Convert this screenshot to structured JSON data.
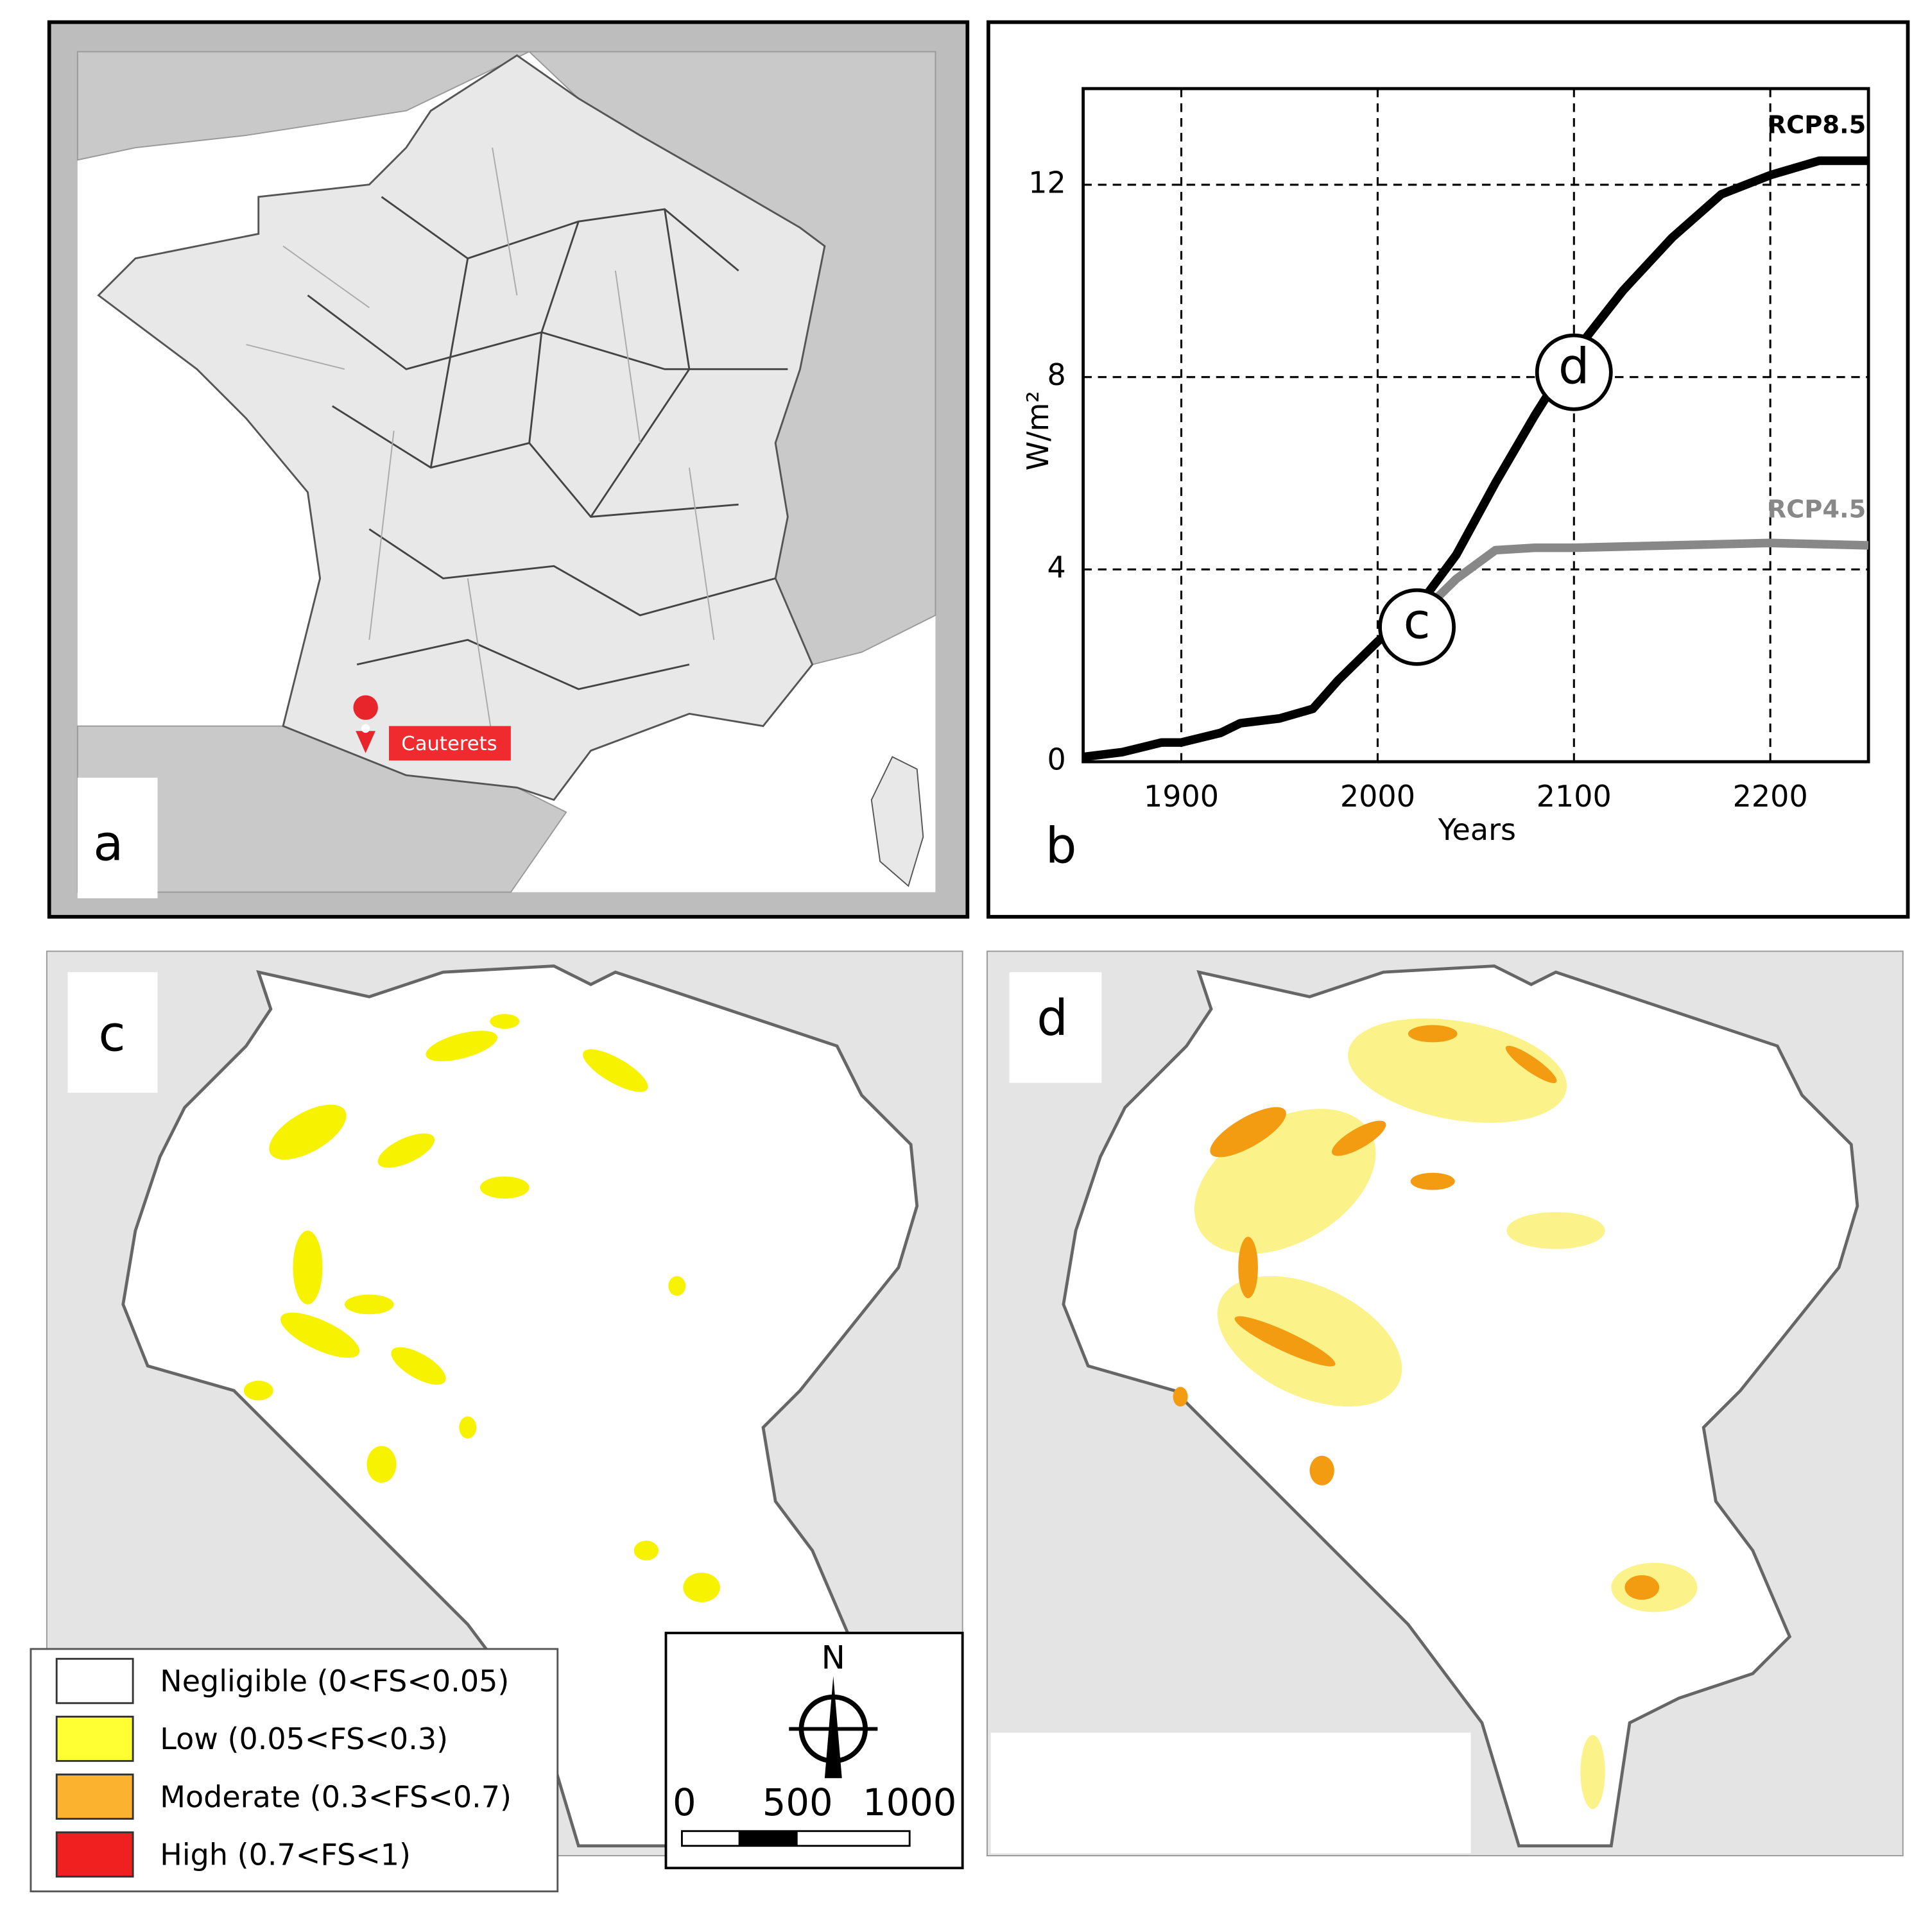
{
  "panels": {
    "a": {
      "label": "a",
      "location": "Cauterets"
    },
    "c": {
      "label": "c"
    },
    "d": {
      "label": "d"
    }
  },
  "legend": {
    "items": [
      {
        "label": "Negligible (0<FS<0.05)",
        "color": "#ffffff"
      },
      {
        "label": "Low (0.05<FS<0.3)",
        "color": "#ffff33"
      },
      {
        "label": "Moderate (0.3<FS<0.7)",
        "color": "#fbb32f"
      },
      {
        "label": "High (0.7<FS<1)",
        "color": "#f02020"
      }
    ]
  },
  "scale": {
    "north": "N",
    "labels": [
      "0",
      "500",
      "1000"
    ]
  },
  "chart_data": {
    "type": "line",
    "panel_label": "b",
    "x_label": "Years",
    "y_label": "W/m²",
    "xlim": [
      1850,
      2250
    ],
    "ylim": [
      0,
      14
    ],
    "xticks": [
      1900,
      2000,
      2100,
      2200
    ],
    "yticks": [
      0,
      4,
      8,
      12
    ],
    "grid": true,
    "series": [
      {
        "name": "RCP8.5",
        "color": "#000000",
        "x": [
          1850,
          1870,
          1890,
          1900,
          1920,
          1930,
          1950,
          1967,
          1980,
          2000,
          2020,
          2040,
          2060,
          2080,
          2100,
          2125,
          2150,
          2175,
          2200,
          2225,
          2250
        ],
        "values": [
          0.1,
          0.2,
          0.4,
          0.4,
          0.6,
          0.8,
          0.9,
          1.1,
          1.7,
          2.5,
          3.2,
          4.3,
          5.8,
          7.2,
          8.5,
          9.8,
          10.9,
          11.8,
          12.2,
          12.5,
          12.5
        ]
      },
      {
        "name": "RCP4.5",
        "color": "#888888",
        "x": [
          2020,
          2040,
          2060,
          2080,
          2100,
          2150,
          2200,
          2250
        ],
        "values": [
          3.0,
          3.8,
          4.4,
          4.45,
          4.45,
          4.5,
          4.55,
          4.5
        ]
      }
    ],
    "annotations": [
      {
        "text": "c",
        "x": 2020,
        "y": 2.8
      },
      {
        "text": "d",
        "x": 2100,
        "y": 8.1
      }
    ]
  }
}
